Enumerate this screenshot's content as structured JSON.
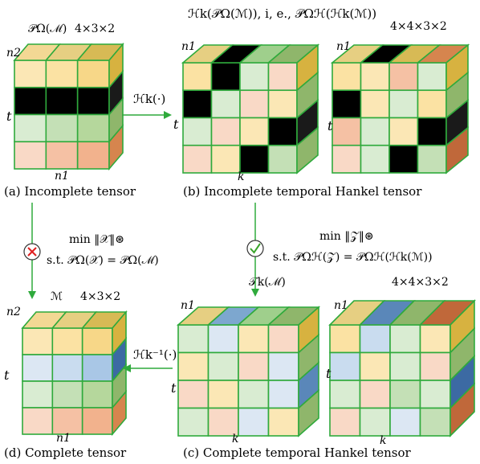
{
  "cubes": {
    "a": {
      "dims_label": "4×3×2",
      "top_label": "𝒫Ω(ℳ)",
      "axis_top": "n2",
      "axis_side": "t",
      "axis_bottom": "n1",
      "caption": "(a) Incomplete tensor",
      "front_colors": [
        [
          "#fbe7b5",
          "#fbe2a3",
          "#f7d788"
        ],
        [
          "#000000",
          "#000000",
          "#000000"
        ],
        [
          "#d9ecd2",
          "#c4e0b6",
          "#b5d79c"
        ],
        [
          "#f9d9c6",
          "#f5c1a4",
          "#f2b28d"
        ]
      ],
      "top_colors": [
        "#f3d894",
        "#e6cf82",
        "#d7ba55"
      ],
      "side_colors": [
        "#d7b240",
        "#1a1a1a",
        "#8fb66b",
        "#d6854e"
      ]
    },
    "b": {
      "dims_label": "4×4×3×2",
      "top_label": "ℋk(𝒫Ω(ℳ)), i, e., 𝒫Ωℋ(ℋk(ℳ))",
      "axis_top": "n1",
      "axis_side": "t",
      "axis_bottom": "k",
      "caption": "(b) Incomplete temporal Hankel tensor",
      "front_colors": [
        [
          "#fbe2a3",
          "#000000",
          "#d9ecd2",
          "#f9d9c6"
        ],
        [
          "#000000",
          "#d9ecd2",
          "#f9d9c6",
          "#fbe7b5"
        ],
        [
          "#d9ecd2",
          "#f9d9c6",
          "#fbe7b5",
          "#000000"
        ],
        [
          "#f9d9c6",
          "#fbe7b5",
          "#000000",
          "#c4e0b6"
        ]
      ],
      "top_colors": [
        "#e6cf82",
        "#000000",
        "#9fcf8c",
        "#8fb66b"
      ],
      "side_colors": [
        "#d7b240",
        "#8fb66b",
        "#1a1a1a",
        "#8fb66b"
      ]
    },
    "b2": {
      "front_colors": [
        [
          "#fbe2a3",
          "#fbe7b5",
          "#f5c1a4",
          "#d9ecd2"
        ],
        [
          "#000000",
          "#fbe7b5",
          "#d9ecd2",
          "#fbe2a3"
        ],
        [
          "#f5c1a4",
          "#d9ecd2",
          "#fbe7b5",
          "#000000"
        ],
        [
          "#f9d9c6",
          "#d9ecd2",
          "#000000",
          "#c4e0b6"
        ]
      ],
      "top_colors": [
        "#e6cf82",
        "#000000",
        "#d7ba55",
        "#d6854e"
      ],
      "side_colors": [
        "#d7b240",
        "#8fb66b",
        "#1a1a1a",
        "#c0683a"
      ]
    },
    "c": {
      "dims_label": "4×4×3×2",
      "top_label": "𝒯k(ℳ)",
      "axis_top": "n1",
      "axis_side": "t",
      "axis_bottom": "k",
      "caption": "(c) Complete temporal Hankel tensor",
      "front_colors": [
        [
          "#d9ecd2",
          "#dce7f3",
          "#fbe7b5",
          "#f9d9c6"
        ],
        [
          "#fbe7b5",
          "#d9ecd2",
          "#f9d9c6",
          "#dce7f3"
        ],
        [
          "#f9d9c6",
          "#fbe7b5",
          "#d9ecd2",
          "#dce7f3"
        ],
        [
          "#d9ecd2",
          "#f9d9c6",
          "#dce7f3",
          "#fbe7b5"
        ]
      ],
      "top_colors": [
        "#e6cf82",
        "#7da7cf",
        "#9fcf8c",
        "#8fb66b"
      ],
      "side_colors": [
        "#d7b240",
        "#8fb66b",
        "#5a87b9",
        "#8fb66b"
      ]
    },
    "c2": {
      "front_colors": [
        [
          "#fbe2a3",
          "#c9dcef",
          "#d9ecd2",
          "#fbe7b5"
        ],
        [
          "#c9dcef",
          "#fbe7b5",
          "#d9ecd2",
          "#f9d9c6"
        ],
        [
          "#d9ecd2",
          "#f9d9c6",
          "#c4e0b6",
          "#d9ecd2"
        ],
        [
          "#f9d9c6",
          "#d9ecd2",
          "#dce7f3",
          "#c4e0b6"
        ]
      ],
      "top_colors": [
        "#e6cf82",
        "#5a87b9",
        "#8fb66b",
        "#c0683a"
      ],
      "side_colors": [
        "#d7b240",
        "#8fb66b",
        "#3c6aa3",
        "#c0683a"
      ]
    },
    "d": {
      "dims_label": "4×3×2",
      "top_label": "ℳ",
      "axis_top": "n2",
      "axis_side": "t",
      "axis_bottom": "n1",
      "caption": "(d) Complete tensor",
      "front_colors": [
        [
          "#fbe7b5",
          "#fbe2a3",
          "#f7d788"
        ],
        [
          "#dce7f3",
          "#c9dcef",
          "#a9c7e6"
        ],
        [
          "#d9ecd2",
          "#c4e0b6",
          "#b5d79c"
        ],
        [
          "#f9d9c6",
          "#f5c1a4",
          "#f2b28d"
        ]
      ],
      "top_colors": [
        "#f3d894",
        "#e6cf82",
        "#d7ba55"
      ],
      "side_colors": [
        "#d7b240",
        "#3c6aa3",
        "#8fb66b",
        "#d6854e"
      ]
    }
  },
  "arrows": {
    "a_to_b": {
      "label": "ℋk(·)"
    },
    "c_to_d": {
      "label": "ℋk⁻¹(·)"
    }
  },
  "optimization": {
    "left": {
      "line1": "min ‖𝒳‖⊛",
      "line2": "s.t. 𝒫Ω(𝒳) = 𝒫Ω(ℳ)",
      "icon": "cross-icon",
      "icon_color": "#e02020"
    },
    "right": {
      "line1": "min ‖𝒵‖⊛",
      "line2": "s.t. 𝒫Ωℋ(𝒵) = 𝒫Ωℋ(ℋk(ℳ))",
      "icon": "check-icon",
      "icon_color": "#3aa52b"
    }
  },
  "colors": {
    "grid_line": "#2faa3c",
    "arrow": "#2faa3c"
  }
}
